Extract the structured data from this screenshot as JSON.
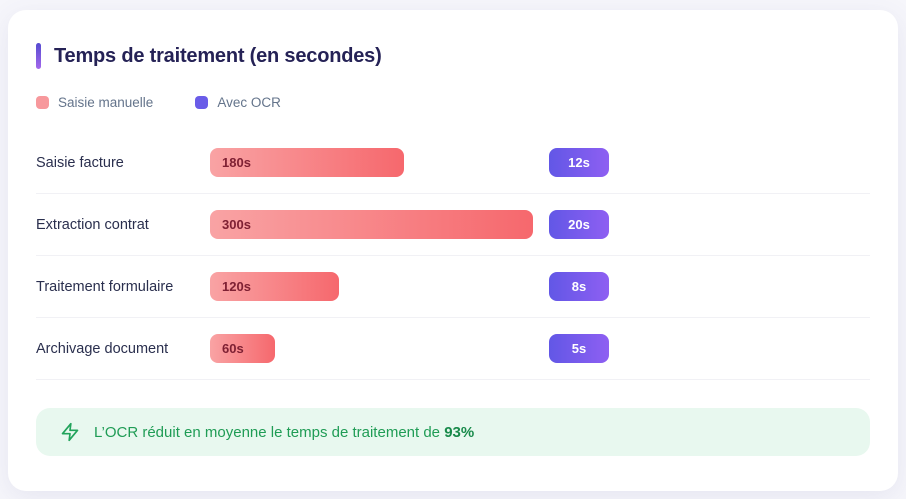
{
  "page": {
    "background": "#f6f6fb"
  },
  "card": {
    "title": "Temps de traitement (en secondes)"
  },
  "legend": {
    "items": [
      {
        "label": "Saisie manuelle",
        "color": "#f7989c"
      },
      {
        "label": "Avec OCR",
        "color": "#6a5ce8"
      }
    ]
  },
  "chart_data": {
    "type": "bar",
    "orientation": "horizontal",
    "title": "Temps de traitement (en secondes)",
    "unit": "seconds",
    "categories": [
      "Saisie facture",
      "Extraction contrat",
      "Traitement formulaire",
      "Archivage document"
    ],
    "series": [
      {
        "name": "Saisie manuelle",
        "values": [
          180,
          300,
          120,
          60
        ]
      },
      {
        "name": "Avec OCR",
        "values": [
          12,
          20,
          8,
          5
        ]
      }
    ],
    "xmax": 300,
    "value_label_format": "{value}s",
    "legend_position": "top",
    "grid": false
  },
  "rows": [
    {
      "label": "Saisie facture",
      "manual": 180,
      "manual_label": "180s",
      "ocr": 12,
      "ocr_label": "12s"
    },
    {
      "label": "Extraction contrat",
      "manual": 300,
      "manual_label": "300s",
      "ocr": 20,
      "ocr_label": "20s"
    },
    {
      "label": "Traitement formulaire",
      "manual": 120,
      "manual_label": "120s",
      "ocr": 8,
      "ocr_label": "8s"
    },
    {
      "label": "Archivage document",
      "manual": 60,
      "manual_label": "60s",
      "ocr": 5,
      "ocr_label": "5s"
    }
  ],
  "footer": {
    "icon": "zap-icon",
    "text": "L’OCR réduit en moyenne le temps de traitement de ",
    "highlight": "93%"
  },
  "colors": {
    "accent_bar_top": "#554bd0",
    "accent_bar_bottom": "#a468ec",
    "manual_bar_start": "#f9a3a4",
    "manual_bar_end": "#f6686d",
    "manual_bar_text": "#7e2033",
    "ocr_bar_start": "#6257e6",
    "ocr_bar_end": "#8e5ff2",
    "ocr_bar_text": "#ffffff",
    "title_text": "#252256",
    "label_text": "#2a2f4e",
    "legend_text": "#64748b",
    "divider": "#f1f1f5",
    "footer_bg": "#e8f8ef",
    "footer_text": "#1f9c55"
  }
}
